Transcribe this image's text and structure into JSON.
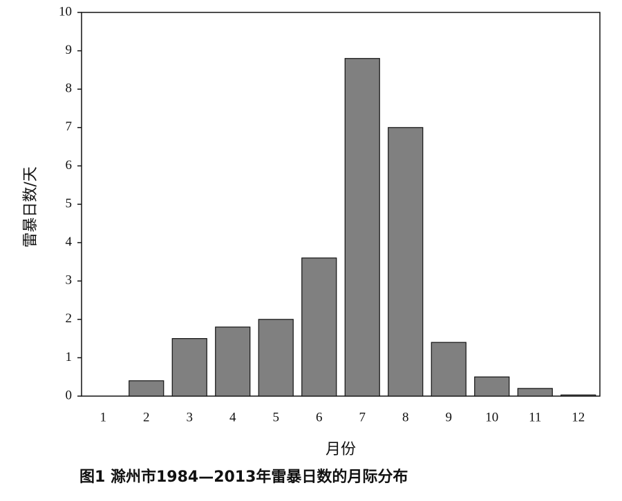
{
  "chart_data": {
    "type": "bar",
    "y_label": "雷暴日数/天",
    "x_label": "月份",
    "caption": "图1 滁州市1984—2013年雷暴日数的月际分布",
    "categories": [
      "1",
      "2",
      "3",
      "4",
      "5",
      "6",
      "7",
      "8",
      "9",
      "10",
      "11",
      "12"
    ],
    "values": [
      0,
      0.4,
      1.5,
      1.8,
      2.0,
      3.6,
      8.8,
      7.0,
      1.4,
      0.5,
      0.2,
      0.03
    ],
    "color": "#808080",
    "ylim": [
      0,
      10
    ],
    "yticks": [
      0,
      1,
      2,
      3,
      4,
      5,
      6,
      7,
      8,
      9,
      10
    ],
    "grid": false
  }
}
